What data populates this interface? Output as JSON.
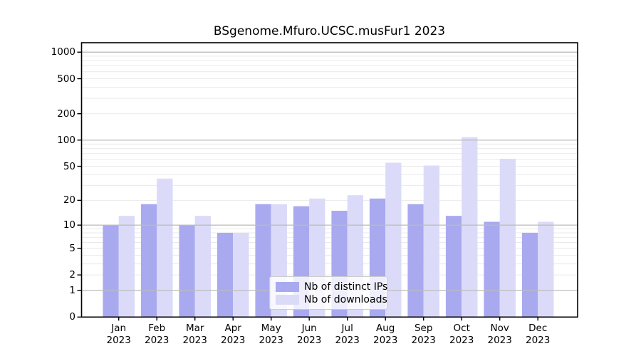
{
  "figure": {
    "title": "BSgenome.Mfuro.UCSC.musFur1 2023"
  },
  "chart_data": {
    "type": "bar",
    "title": "BSgenome.Mfuro.UCSC.musFur1 2023",
    "categories": [
      "Jan",
      "Feb",
      "Mar",
      "Apr",
      "May",
      "Jun",
      "Jul",
      "Aug",
      "Sep",
      "Oct",
      "Nov",
      "Dec"
    ],
    "year": "2023",
    "series": [
      {
        "name": "Nb of distinct IPs",
        "color": "#a9a9f0",
        "values": [
          10,
          18,
          10,
          8,
          18,
          17,
          15,
          21,
          18,
          13,
          11,
          8
        ]
      },
      {
        "name": "Nb of downloads",
        "color": "#dbdbf9",
        "values": [
          13,
          36,
          13,
          8,
          18,
          21,
          23,
          55,
          51,
          108,
          61,
          11
        ]
      }
    ],
    "y_ticks": [
      0,
      1,
      2,
      5,
      10,
      20,
      50,
      100,
      200,
      500,
      1000
    ],
    "y_scale": "log10(1+y)",
    "ylim": [
      0,
      1150
    ],
    "legend_position": "bottom-center",
    "grid": {
      "minor_lines": [
        2,
        3,
        4,
        5,
        6,
        7,
        8,
        9,
        20,
        30,
        40,
        50,
        60,
        70,
        80,
        90,
        200,
        300,
        400,
        500,
        600,
        700,
        800,
        900
      ],
      "major_lines": [
        1,
        10,
        100,
        1000
      ],
      "minor_color": "#eaeaea",
      "major_color": "#bbbbbb"
    },
    "colors": {
      "axis": "#000000",
      "background": "#ffffff",
      "text": "#000000"
    }
  }
}
